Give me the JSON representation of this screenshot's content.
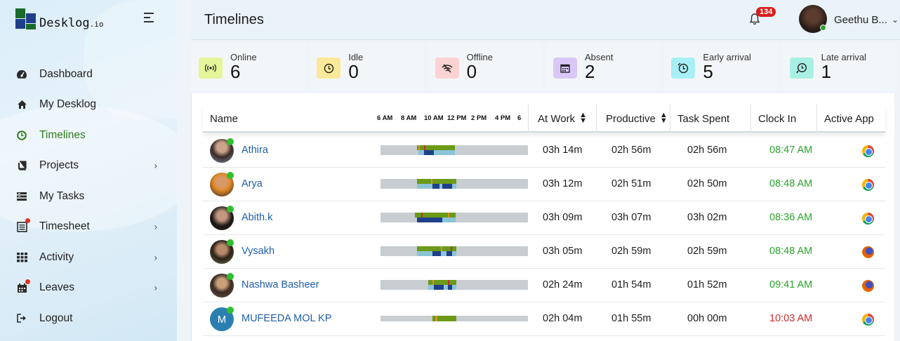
{
  "brand": {
    "name": "Desklog",
    "suffix": ".io"
  },
  "sidebar": {
    "items": [
      {
        "label": "Dashboard",
        "icon": "dashboard-icon"
      },
      {
        "label": "My Desklog",
        "icon": "home-icon"
      },
      {
        "label": "Timelines",
        "icon": "clock-icon",
        "active": true
      },
      {
        "label": "Projects",
        "icon": "book-icon",
        "chevron": true
      },
      {
        "label": "My Tasks",
        "icon": "tasks-icon"
      },
      {
        "label": "Timesheet",
        "icon": "timesheet-icon",
        "chevron": true,
        "dot": true
      },
      {
        "label": "Activity",
        "icon": "grid-icon",
        "chevron": true
      },
      {
        "label": "Leaves",
        "icon": "calendar-icon",
        "chevron": true,
        "dot": true
      },
      {
        "label": "Logout",
        "icon": "logout-icon"
      }
    ]
  },
  "header": {
    "title": "Timelines",
    "notifications": "134",
    "user_name": "Geethu B..."
  },
  "stats": [
    {
      "label": "Online",
      "value": "6",
      "icon": "broadcast-icon",
      "color": "#e4f59a"
    },
    {
      "label": "Idle",
      "value": "0",
      "icon": "idle-clock-icon",
      "color": "#fbe99a"
    },
    {
      "label": "Offline",
      "value": "0",
      "icon": "wifi-off-icon",
      "color": "#fbd3d3"
    },
    {
      "label": "Absent",
      "value": "2",
      "icon": "calendar-icon",
      "color": "#d9c8f7"
    },
    {
      "label": "Early arrival",
      "value": "5",
      "icon": "early-clock-icon",
      "color": "#a8f0f5"
    },
    {
      "label": "Late arrival",
      "value": "1",
      "icon": "late-clock-icon",
      "color": "#a8f0e4"
    }
  ],
  "table": {
    "columns": {
      "name": "Name",
      "at_work": "At Work",
      "productive": "Productive",
      "task_spent": "Task Spent",
      "clock_in": "Clock In",
      "active_app": "Active App"
    },
    "time_ticks": [
      "6 AM",
      "8 AM",
      "10 AM",
      "12 PM",
      "2 PM",
      "4 PM",
      "6"
    ],
    "rows": [
      {
        "name": "Athira",
        "at_work": "03h 14m",
        "productive": "02h 56m",
        "task_spent": "02h 56m",
        "clock_in": "08:47 AM",
        "late": false,
        "app": "chrome-icon"
      },
      {
        "name": "Arya",
        "at_work": "03h 12m",
        "productive": "02h 51m",
        "task_spent": "02h 50m",
        "clock_in": "08:48 AM",
        "late": false,
        "app": "chrome-icon"
      },
      {
        "name": "Abith.k",
        "at_work": "03h 09m",
        "productive": "03h 07m",
        "task_spent": "03h 02m",
        "clock_in": "08:36 AM",
        "late": false,
        "app": "chrome-icon"
      },
      {
        "name": "Vysakh",
        "at_work": "03h 05m",
        "productive": "02h 59m",
        "task_spent": "02h 59m",
        "clock_in": "08:48 AM",
        "late": false,
        "app": "firefox-icon"
      },
      {
        "name": "Nashwa Basheer",
        "at_work": "02h 24m",
        "productive": "01h 54m",
        "task_spent": "01h 52m",
        "clock_in": "09:41 AM",
        "late": false,
        "app": "firefox-icon"
      },
      {
        "name": "MUFEEDA MOL KP",
        "avatar_letter": "M",
        "at_work": "02h 04m",
        "productive": "01h 55m",
        "task_spent": "00h 00m",
        "clock_in": "10:03 AM",
        "late": true,
        "app": "chrome-icon"
      }
    ]
  }
}
